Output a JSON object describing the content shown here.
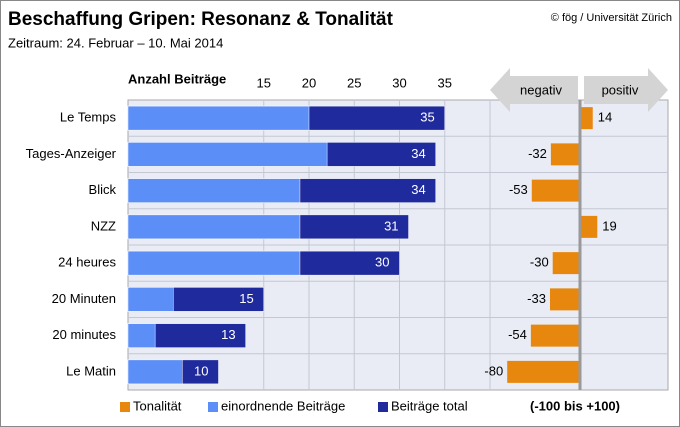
{
  "chart_data": [
    {
      "type": "bar",
      "title": "Beschaffung Gripen: Resonanz & Tonalität",
      "subtitle": "Zeitraum: 24. Februar – 10. Mai 2014",
      "source": "© fög / Universität Zürich",
      "x_label": "Anzahl Beiträge",
      "categories": [
        "Le Temps",
        "Tages-Anzeiger",
        "Blick",
        "NZZ",
        "24 heures",
        "20 Minuten",
        "20 minutes",
        "Le Matin"
      ],
      "series": [
        {
          "name": "Beiträge total",
          "color": "#1f2a9c",
          "values": [
            35,
            34,
            34,
            31,
            30,
            15,
            13,
            10
          ]
        },
        {
          "name": "einordnende Beiträge",
          "color": "#5b8ef7",
          "values": [
            20,
            22,
            19,
            19,
            19,
            5,
            3,
            6
          ]
        }
      ],
      "xlim": [
        0,
        40
      ],
      "xticks": [
        15,
        20,
        25,
        30,
        35
      ],
      "grid": true
    },
    {
      "type": "bar",
      "note": "(-100 bis +100)",
      "negative_label": "negativ",
      "positive_label": "positiv",
      "series": [
        {
          "name": "Tonalität",
          "color": "#e8870e",
          "values": [
            14,
            -32,
            -53,
            19,
            -30,
            -33,
            -54,
            -80
          ]
        }
      ],
      "xlim": [
        -100,
        100
      ]
    }
  ]
}
